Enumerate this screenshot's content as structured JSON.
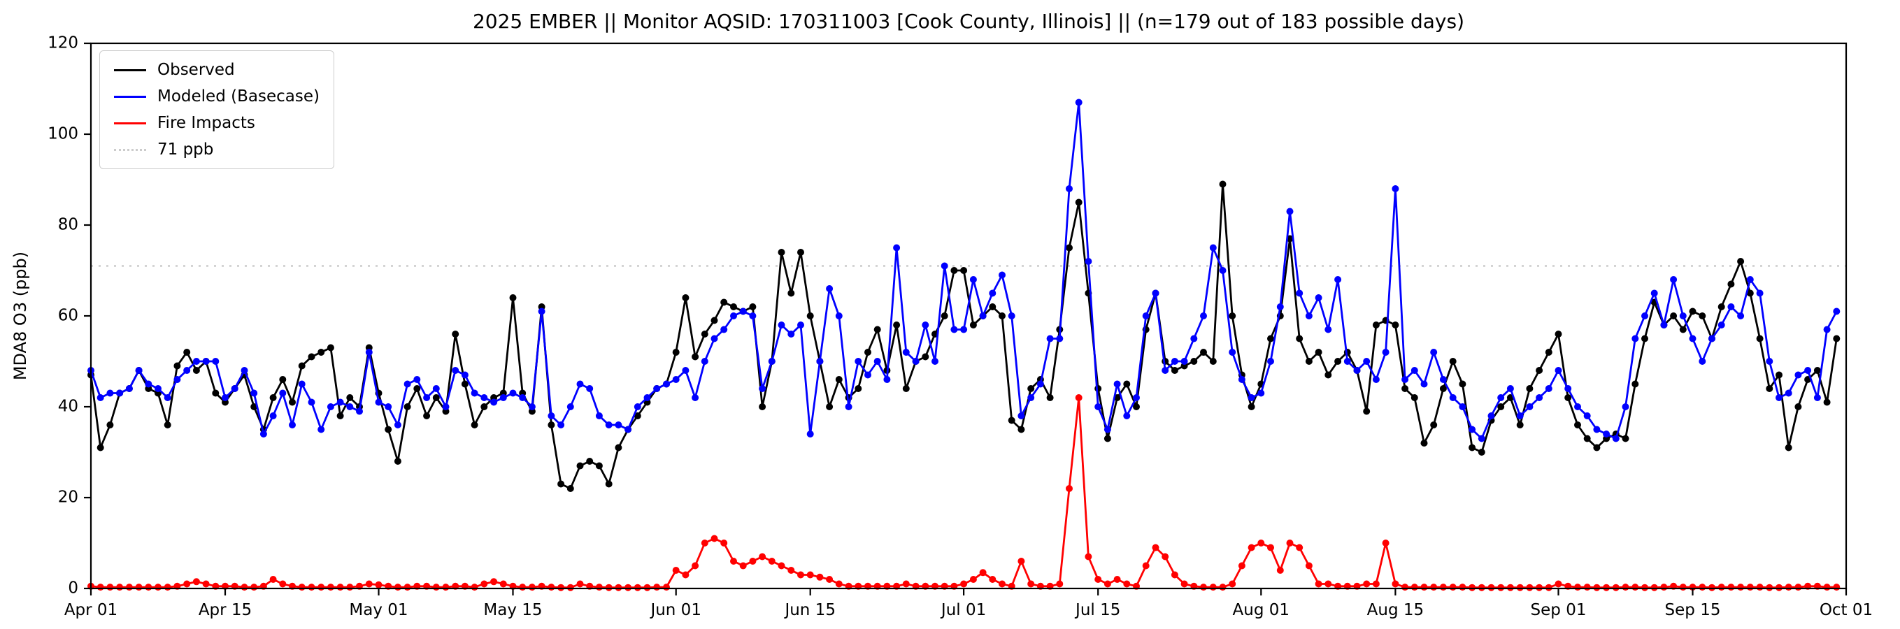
{
  "chart_data": {
    "type": "line",
    "title": "2025 EMBER || Monitor AQSID: 170311003 [Cook County, Illinois] || (n=179 out of 183 possible days)",
    "xlabel": "",
    "ylabel": "MDA8 O3 (ppb)",
    "ylim": [
      0,
      120
    ],
    "y_ticks": [
      0,
      20,
      40,
      60,
      80,
      100,
      120
    ],
    "x_range_days": 183,
    "x_ticks": [
      {
        "day": 0,
        "label": "Apr 01"
      },
      {
        "day": 14,
        "label": "Apr 15"
      },
      {
        "day": 30,
        "label": "May 01"
      },
      {
        "day": 44,
        "label": "May 15"
      },
      {
        "day": 61,
        "label": "Jun 01"
      },
      {
        "day": 75,
        "label": "Jun 15"
      },
      {
        "day": 91,
        "label": "Jul 01"
      },
      {
        "day": 105,
        "label": "Jul 15"
      },
      {
        "day": 122,
        "label": "Aug 01"
      },
      {
        "day": 136,
        "label": "Aug 15"
      },
      {
        "day": 153,
        "label": "Sep 01"
      },
      {
        "day": 167,
        "label": "Sep 15"
      },
      {
        "day": 183,
        "label": "Oct 01"
      }
    ],
    "grid": false,
    "legend_position": "upper-left",
    "threshold": {
      "value": 71,
      "label": "71 ppb",
      "color": "#cccccc"
    },
    "legend": [
      {
        "label": "Observed",
        "color": "#000000",
        "dotted": false
      },
      {
        "label": "Modeled (Basecase)",
        "color": "#0000ff",
        "dotted": false
      },
      {
        "label": "Fire Impacts",
        "color": "#ff0000",
        "dotted": false
      },
      {
        "label": "71 ppb",
        "color": "#cccccc",
        "dotted": true
      }
    ],
    "series": [
      {
        "name": "Observed",
        "color": "#000000",
        "values": [
          47,
          31,
          36,
          43,
          44,
          48,
          44,
          43,
          36,
          49,
          52,
          48,
          50,
          43,
          41,
          44,
          47,
          40,
          35,
          42,
          46,
          41,
          49,
          51,
          52,
          53,
          38,
          42,
          40,
          53,
          43,
          35,
          28,
          40,
          44,
          38,
          42,
          39,
          56,
          45,
          36,
          40,
          42,
          43,
          64,
          43,
          39,
          62,
          36,
          23,
          22,
          27,
          28,
          27,
          23,
          31,
          35,
          38,
          41,
          44,
          45,
          52,
          64,
          51,
          56,
          59,
          63,
          62,
          61,
          62,
          40,
          50,
          74,
          65,
          74,
          60,
          50,
          40,
          46,
          42,
          44,
          52,
          57,
          48,
          58,
          44,
          50,
          51,
          56,
          60,
          70,
          70,
          58,
          60,
          62,
          60,
          37,
          35,
          44,
          46,
          42,
          57,
          75,
          85,
          65,
          44,
          33,
          42,
          45,
          40,
          57,
          65,
          50,
          48,
          49,
          50,
          52,
          50,
          89,
          60,
          47,
          40,
          45,
          55,
          60,
          77,
          55,
          50,
          52,
          47,
          50,
          52,
          48,
          39,
          58,
          59,
          58,
          44,
          42,
          32,
          36,
          44,
          50,
          45,
          31,
          30,
          37,
          40,
          42,
          36,
          44,
          48,
          52,
          56,
          42,
          36,
          33,
          31,
          33,
          34,
          33,
          45,
          55,
          63,
          58,
          60,
          57,
          61,
          60,
          55,
          62,
          67,
          72,
          65,
          55,
          44,
          47,
          31,
          40,
          46,
          48,
          41,
          55
        ]
      },
      {
        "name": "Modeled (Basecase)",
        "color": "#0000ff",
        "values": [
          48,
          42,
          43,
          43,
          44,
          48,
          45,
          44,
          42,
          46,
          48,
          50,
          50,
          50,
          42,
          44,
          48,
          43,
          34,
          38,
          43,
          36,
          45,
          41,
          35,
          40,
          41,
          40,
          39,
          52,
          41,
          40,
          36,
          45,
          46,
          42,
          44,
          40,
          48,
          47,
          43,
          42,
          41,
          42,
          43,
          42,
          40,
          61,
          38,
          36,
          40,
          45,
          44,
          38,
          36,
          36,
          35,
          40,
          42,
          44,
          45,
          46,
          48,
          42,
          50,
          55,
          57,
          60,
          61,
          60,
          44,
          50,
          58,
          56,
          58,
          34,
          50,
          66,
          60,
          40,
          50,
          47,
          50,
          46,
          75,
          52,
          50,
          58,
          50,
          71,
          57,
          57,
          68,
          60,
          65,
          69,
          60,
          38,
          42,
          45,
          55,
          55,
          88,
          107,
          72,
          40,
          35,
          45,
          38,
          42,
          60,
          65,
          48,
          50,
          50,
          55,
          60,
          75,
          70,
          52,
          46,
          42,
          43,
          50,
          62,
          83,
          65,
          60,
          64,
          57,
          68,
          50,
          48,
          50,
          46,
          52,
          88,
          46,
          48,
          45,
          52,
          46,
          42,
          40,
          35,
          33,
          38,
          42,
          44,
          38,
          40,
          42,
          44,
          48,
          44,
          40,
          38,
          35,
          34,
          33,
          40,
          55,
          60,
          65,
          58,
          68,
          60,
          55,
          50,
          55,
          58,
          62,
          60,
          68,
          65,
          50,
          42,
          43,
          47,
          48,
          42,
          57,
          61
        ]
      },
      {
        "name": "Fire Impacts",
        "color": "#ff0000",
        "values": [
          0.5,
          0.3,
          0.3,
          0.3,
          0.3,
          0.3,
          0.3,
          0.3,
          0.3,
          0.5,
          1,
          1.5,
          1,
          0.5,
          0.5,
          0.5,
          0.3,
          0.3,
          0.5,
          2,
          1,
          0.5,
          0.3,
          0.3,
          0.3,
          0.3,
          0.3,
          0.3,
          0.5,
          1,
          0.8,
          0.5,
          0.3,
          0.3,
          0.5,
          0.5,
          0.3,
          0.3,
          0.5,
          0.5,
          0.3,
          1,
          1.5,
          1,
          0.5,
          0.3,
          0.3,
          0.5,
          0.3,
          0.2,
          0.2,
          1,
          0.5,
          0.3,
          0.2,
          0.2,
          0.2,
          0.2,
          0.2,
          0.3,
          0.3,
          4,
          3,
          5,
          10,
          11,
          10,
          6,
          5,
          6,
          7,
          6,
          5,
          4,
          3,
          3,
          2.5,
          2,
          1,
          0.5,
          0.5,
          0.5,
          0.5,
          0.5,
          0.5,
          1,
          0.5,
          0.5,
          0.5,
          0.5,
          0.5,
          1,
          2,
          3.5,
          2,
          1,
          0.5,
          6,
          1,
          0.5,
          0.5,
          1,
          22,
          42,
          7,
          2,
          1,
          2,
          1,
          0.5,
          5,
          9,
          7,
          3,
          1,
          0.5,
          0.3,
          0.3,
          0.3,
          1,
          5,
          9,
          10,
          9,
          4,
          10,
          9,
          5,
          1,
          1,
          0.5,
          0.5,
          0.5,
          1,
          1,
          10,
          1,
          0.3,
          0.3,
          0.3,
          0.3,
          0.3,
          0.3,
          0.3,
          0.2,
          0.2,
          0.2,
          0.2,
          0.2,
          0.2,
          0.2,
          0.2,
          0.2,
          1,
          0.5,
          0.3,
          0.3,
          0.2,
          0.2,
          0.2,
          0.3,
          0.3,
          0.2,
          0.2,
          0.3,
          0.5,
          0.3,
          0.3,
          0.3,
          0.2,
          0.3,
          0.3,
          0.3,
          0.3,
          0.3,
          0.2,
          0.2,
          0.3,
          0.3,
          0.5,
          0.5,
          0.3,
          0.3
        ]
      }
    ]
  }
}
